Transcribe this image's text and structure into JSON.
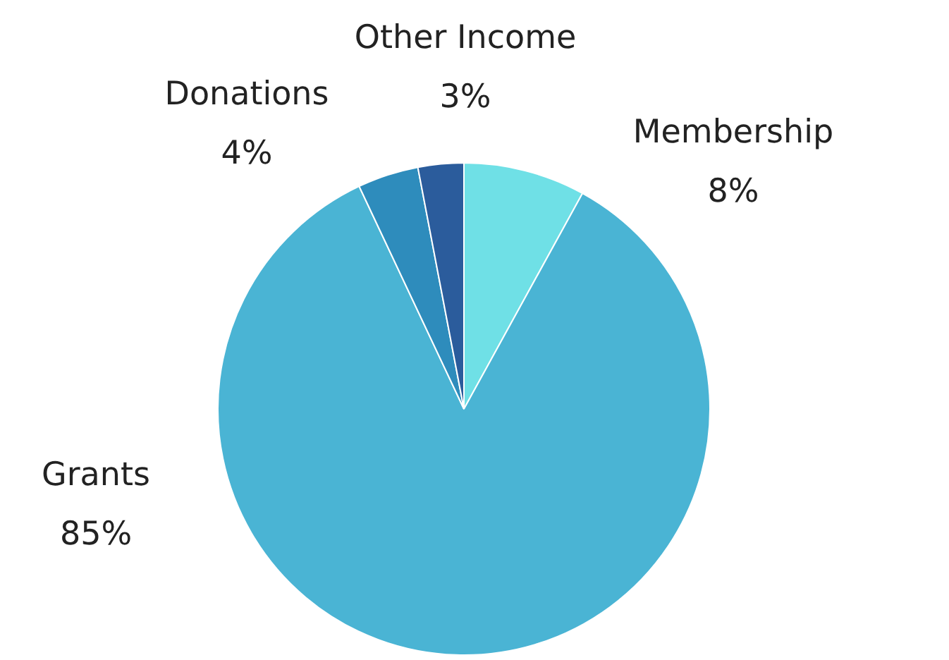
{
  "chart_data": {
    "type": "pie",
    "categories": [
      "Membership",
      "Grants",
      "Donations",
      "Other Income"
    ],
    "values": [
      8,
      85,
      4,
      3
    ],
    "colors": [
      "#6fe0e6",
      "#4ab4d4",
      "#2e8cbc",
      "#2b5c9c"
    ],
    "value_labels": [
      "8%",
      "85%",
      "4%",
      "3%"
    ],
    "legend": false
  }
}
